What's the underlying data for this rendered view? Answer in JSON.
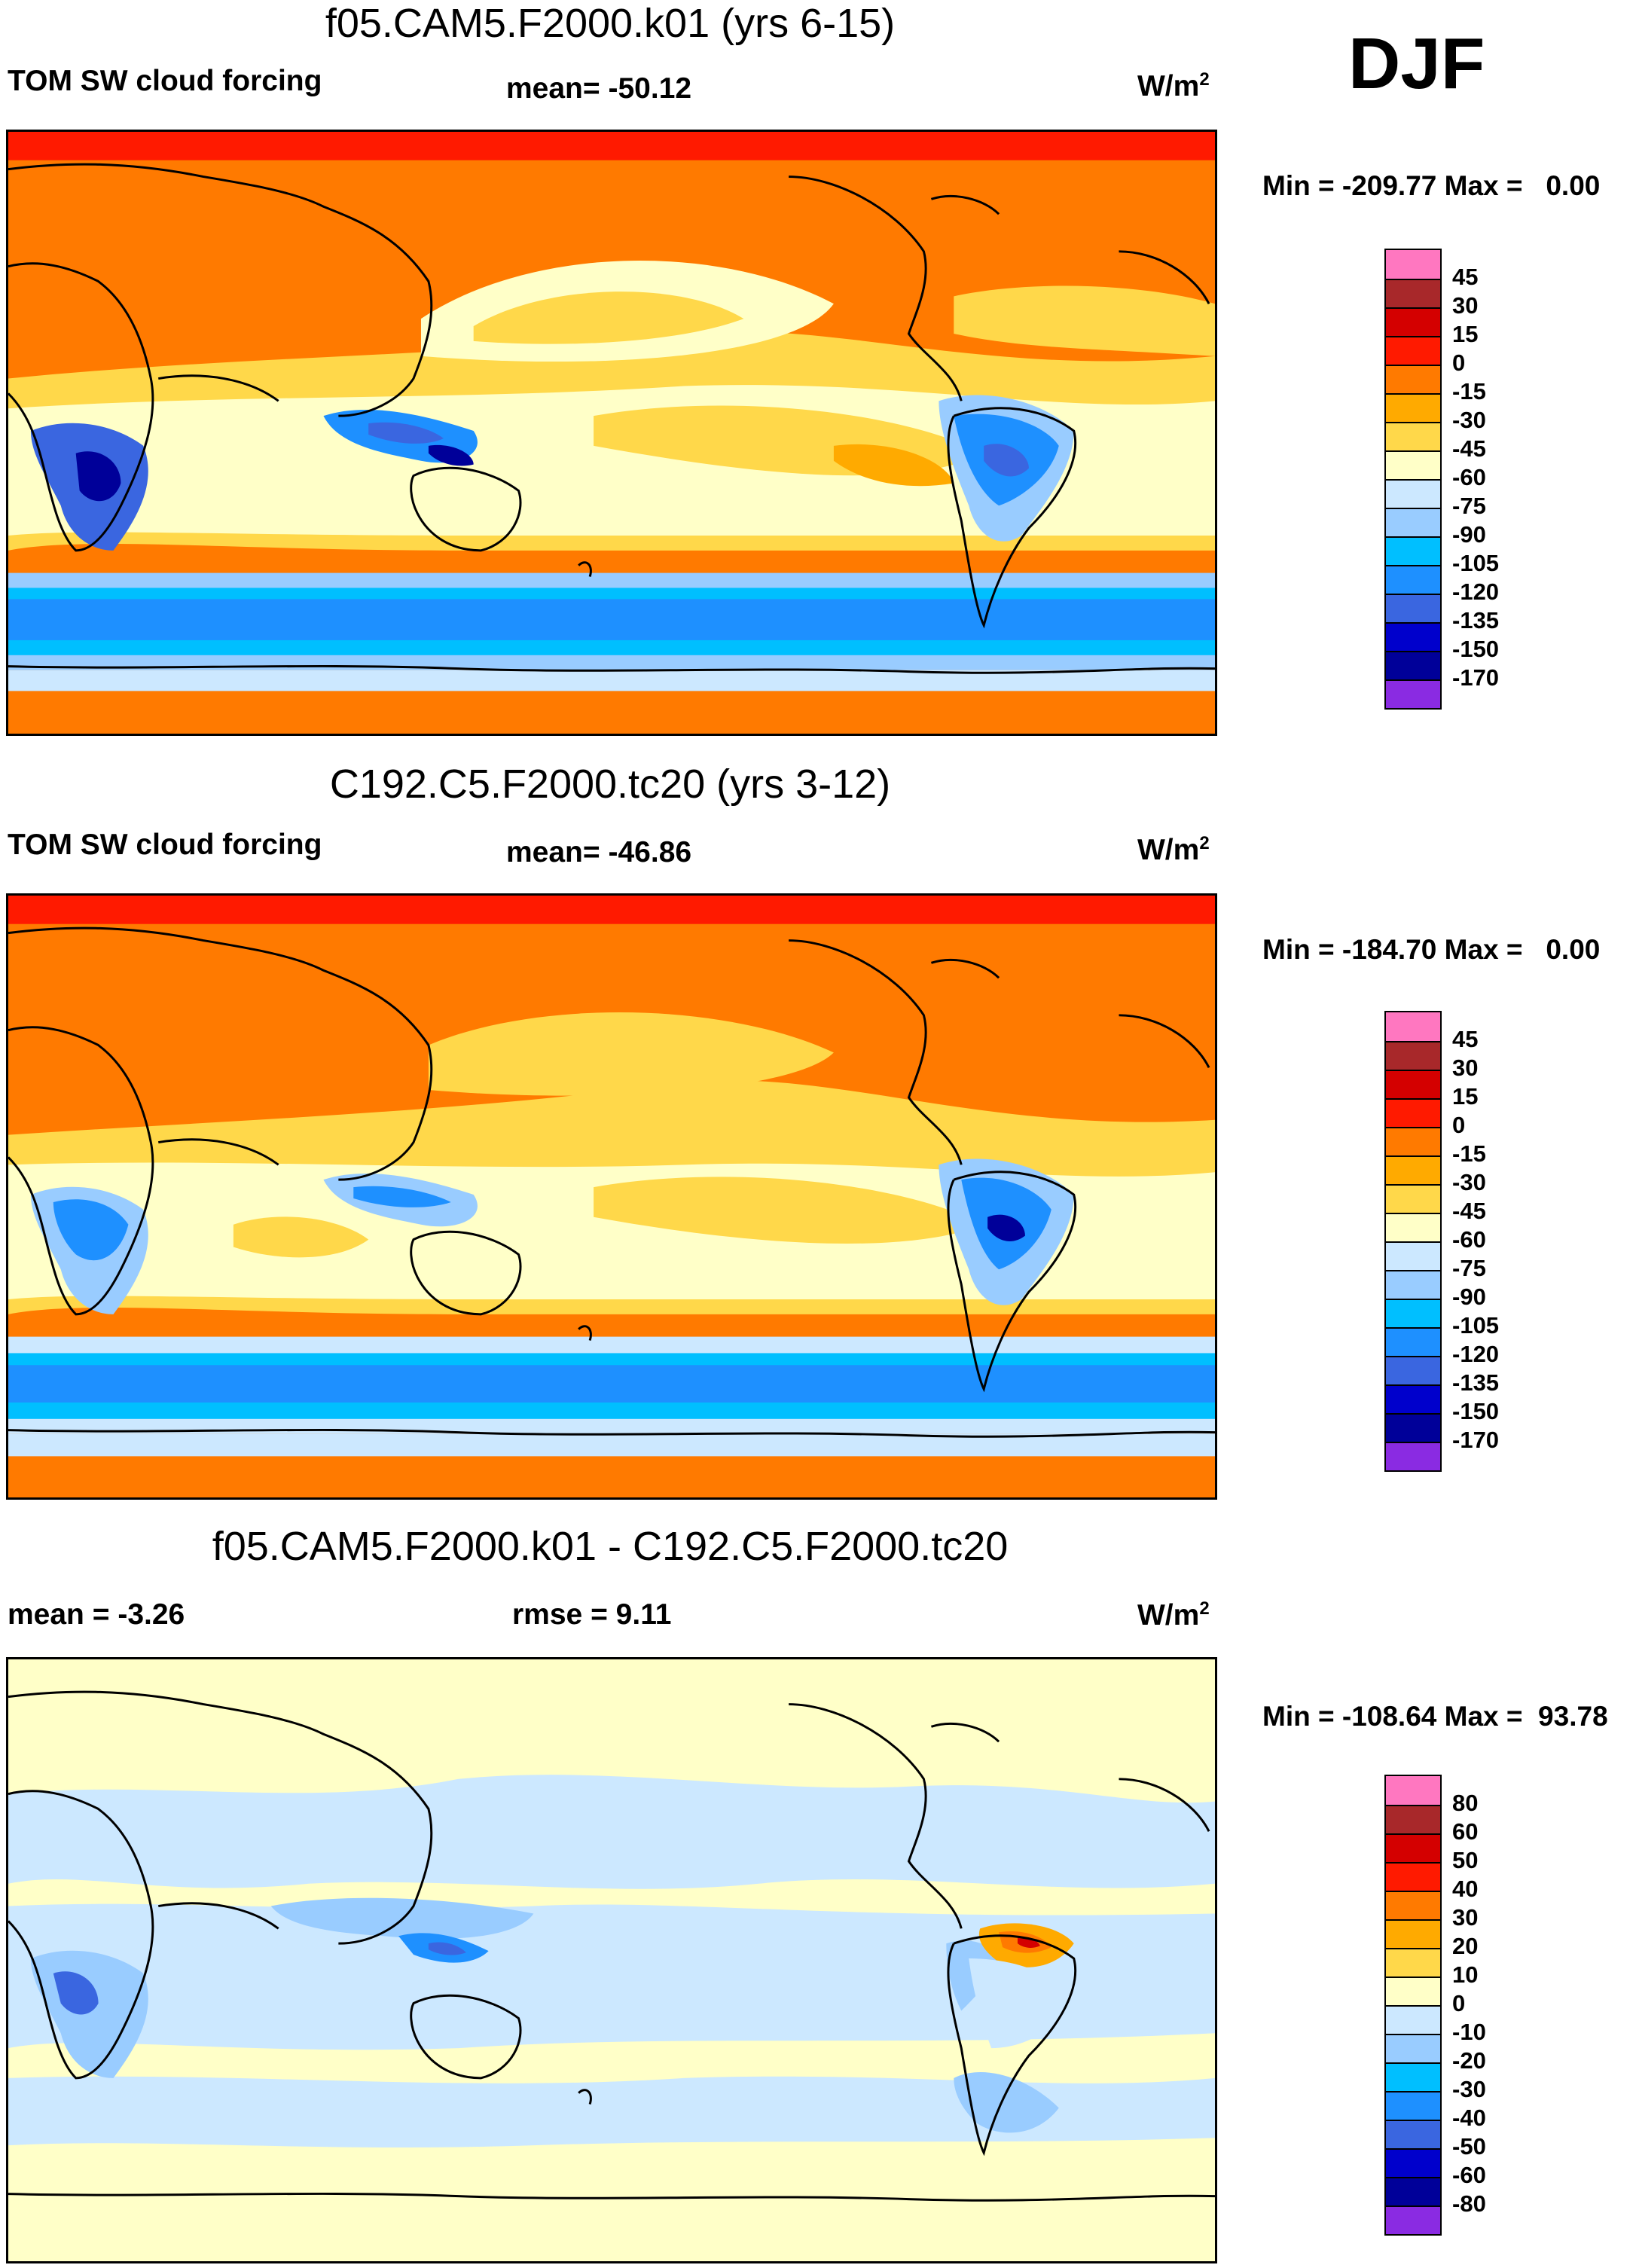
{
  "season": "DJF",
  "panels": [
    {
      "title": "f05.CAM5.F2000.k01 (yrs 6-15)",
      "left_label": "TOM SW cloud forcing",
      "center_label": "mean= -50.12",
      "units_base": "W/m",
      "units_sup": "2",
      "minmax": "Min = -209.77 Max =   0.00",
      "colorbar": {
        "labels": [
          "45",
          "30",
          "15",
          "0",
          "-15",
          "-30",
          "-45",
          "-60",
          "-75",
          "-90",
          "-105",
          "-120",
          "-135",
          "-150",
          "-170"
        ],
        "colors": [
          "#ff77c0",
          "#a8282a",
          "#d40000",
          "#ff1a00",
          "#ff7a00",
          "#ffaa00",
          "#ffd84a",
          "#ffffc8",
          "#cce8ff",
          "#99ccff",
          "#00bfff",
          "#1e90ff",
          "#3a66e0",
          "#0000cc",
          "#000099",
          "#8a2be2"
        ]
      }
    },
    {
      "title": "C192.C5.F2000.tc20 (yrs 3-12)",
      "left_label": "TOM SW cloud forcing",
      "center_label": "mean= -46.86",
      "units_base": "W/m",
      "units_sup": "2",
      "minmax": "Min = -184.70 Max =   0.00",
      "colorbar": {
        "labels": [
          "45",
          "30",
          "15",
          "0",
          "-15",
          "-30",
          "-45",
          "-60",
          "-75",
          "-90",
          "-105",
          "-120",
          "-135",
          "-150",
          "-170"
        ],
        "colors": [
          "#ff77c0",
          "#a8282a",
          "#d40000",
          "#ff1a00",
          "#ff7a00",
          "#ffaa00",
          "#ffd84a",
          "#ffffc8",
          "#cce8ff",
          "#99ccff",
          "#00bfff",
          "#1e90ff",
          "#3a66e0",
          "#0000cc",
          "#000099",
          "#8a2be2"
        ]
      }
    },
    {
      "title": "f05.CAM5.F2000.k01 - C192.C5.F2000.tc20",
      "left_label": "mean =  -3.26",
      "center_label": "rmse =   9.11",
      "units_base": "W/m",
      "units_sup": "2",
      "minmax": "Min = -108.64 Max =  93.78",
      "colorbar": {
        "labels": [
          "80",
          "60",
          "50",
          "40",
          "30",
          "20",
          "10",
          "0",
          "-10",
          "-20",
          "-30",
          "-40",
          "-50",
          "-60",
          "-80"
        ],
        "colors": [
          "#ff77c0",
          "#a8282a",
          "#d40000",
          "#ff1a00",
          "#ff7a00",
          "#ffaa00",
          "#ffd84a",
          "#ffffc8",
          "#cce8ff",
          "#99ccff",
          "#00bfff",
          "#1e90ff",
          "#3a66e0",
          "#0000cc",
          "#000099",
          "#8a2be2"
        ]
      }
    }
  ]
}
